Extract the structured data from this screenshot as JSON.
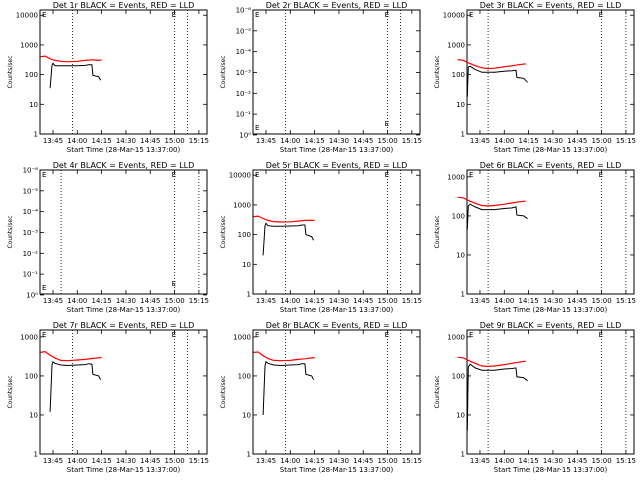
{
  "chart_data": [
    {
      "type": "line",
      "title": "Det 1r BLACK = Events, RED = LLD",
      "xlabel": "Start Time (28-Mar-15 13:37:00)",
      "ylabel": "Counts/sec",
      "y_scale": "log",
      "ylim": [
        1,
        15000
      ],
      "y_tick_labels": [
        "1",
        "10",
        "100",
        "1000",
        "10000"
      ],
      "xlim": [
        "13:37",
        "15:20"
      ],
      "x_tick_labels": [
        "13:45",
        "14:00",
        "14:15",
        "14:30",
        "14:45",
        "15:00",
        "15:15"
      ],
      "vlines": [
        "13:57",
        "15:00",
        "15:08"
      ],
      "annotation": "E",
      "series": [
        {
          "color": "#000000",
          "values": [
            [
              13.72,
              35
            ],
            [
              13.74,
              210
            ],
            [
              13.75,
              240
            ],
            [
              13.77,
              200
            ],
            [
              13.83,
              200
            ],
            [
              13.9,
              200
            ],
            [
              14.0,
              200
            ],
            [
              14.08,
              205
            ],
            [
              14.12,
              215
            ],
            [
              14.15,
              215
            ],
            [
              14.16,
              95
            ],
            [
              14.22,
              85
            ],
            [
              14.24,
              65
            ]
          ]
        },
        {
          "color": "#ff0000",
          "values": [
            [
              13.62,
              400
            ],
            [
              13.67,
              420
            ],
            [
              13.72,
              340
            ],
            [
              13.77,
              300
            ],
            [
              13.83,
              280
            ],
            [
              13.9,
              270
            ],
            [
              14.0,
              280
            ],
            [
              14.08,
              300
            ],
            [
              14.15,
              315
            ],
            [
              14.22,
              300
            ],
            [
              14.25,
              310
            ]
          ]
        }
      ]
    },
    {
      "type": "line",
      "title": "Det 2r BLACK = Events, RED = LLD",
      "xlabel": "Start Time (28-Mar-15 13:37:00)",
      "ylabel": "Counts/sec",
      "y_scale": "log",
      "ylim": [
        0.9,
        1e-06
      ],
      "y_tick_labels": [
        "10⁰",
        "10⁻¹",
        "10⁻²",
        "10⁻³",
        "10⁻⁴",
        "10⁻⁵",
        "10⁻⁶"
      ],
      "xlim": [
        "13:37",
        "15:20"
      ],
      "x_tick_labels": [
        "13:45",
        "14:00",
        "14:15",
        "14:30",
        "14:45",
        "15:00",
        "15:15"
      ],
      "vlines": [
        "13:57",
        "15:00",
        "15:08"
      ],
      "annotation": "E",
      "series": []
    },
    {
      "type": "line",
      "title": "Det 3r BLACK = Events, RED = LLD",
      "xlabel": "Start Time (28-Mar-15 13:37:00)",
      "ylabel": "Counts/sec",
      "y_scale": "log",
      "ylim": [
        1,
        15000
      ],
      "y_tick_labels": [
        "1",
        "10",
        "100",
        "1000",
        "10000"
      ],
      "xlim": [
        "13:37",
        "15:20"
      ],
      "x_tick_labels": [
        "13:45",
        "14:00",
        "14:15",
        "14:30",
        "14:45",
        "15:00",
        "15:15"
      ],
      "vlines": [
        "13:50",
        "15:00",
        "15:15"
      ],
      "annotation": "E",
      "series": [
        {
          "color": "#000000",
          "values": [
            [
              13.62,
              18
            ],
            [
              13.63,
              180
            ],
            [
              13.65,
              190
            ],
            [
              13.7,
              150
            ],
            [
              13.77,
              120
            ],
            [
              13.83,
              120
            ],
            [
              13.9,
              120
            ],
            [
              14.0,
              130
            ],
            [
              14.08,
              135
            ],
            [
              14.12,
              140
            ],
            [
              14.13,
              80
            ],
            [
              14.2,
              75
            ],
            [
              14.24,
              55
            ]
          ]
        },
        {
          "color": "#ff0000",
          "values": [
            [
              13.52,
              320
            ],
            [
              13.58,
              300
            ],
            [
              13.63,
              250
            ],
            [
              13.7,
              200
            ],
            [
              13.77,
              170
            ],
            [
              13.83,
              160
            ],
            [
              13.9,
              165
            ],
            [
              14.0,
              185
            ],
            [
              14.08,
              200
            ],
            [
              14.15,
              215
            ],
            [
              14.22,
              230
            ]
          ]
        }
      ]
    },
    {
      "type": "line",
      "title": "Det 4r BLACK = Events, RED = LLD",
      "xlabel": "Start Time (28-Mar-15 13:37:00)",
      "ylabel": "Counts/sec",
      "y_scale": "log",
      "ylim": [
        0.9,
        1e-06
      ],
      "y_tick_labels": [
        "10⁰",
        "10⁻¹",
        "10⁻²",
        "10⁻³",
        "10⁻⁴",
        "10⁻⁵",
        "10⁻⁶"
      ],
      "xlim": [
        "13:37",
        "15:20"
      ],
      "x_tick_labels": [
        "13:45",
        "14:00",
        "14:15",
        "14:30",
        "14:45",
        "15:00",
        "15:15"
      ],
      "vlines": [
        "13:50",
        "15:00",
        "15:15"
      ],
      "annotation": "E",
      "series": []
    },
    {
      "type": "line",
      "title": "Det 5r BLACK = Events, RED = LLD",
      "xlabel": "Start Time (28-Mar-15 13:37:00)",
      "ylabel": "Counts/sec",
      "y_scale": "log",
      "ylim": [
        1,
        15000
      ],
      "y_tick_labels": [
        "1",
        "10",
        "100",
        "1000",
        "10000"
      ],
      "xlim": [
        "13:37",
        "15:20"
      ],
      "x_tick_labels": [
        "13:45",
        "14:00",
        "14:15",
        "14:30",
        "14:45",
        "15:00",
        "15:15"
      ],
      "vlines": [
        "13:57",
        "15:00",
        "15:08"
      ],
      "annotation": "E",
      "series": [
        {
          "color": "#000000",
          "values": [
            [
              13.72,
              20
            ],
            [
              13.74,
              200
            ],
            [
              13.75,
              240
            ],
            [
              13.77,
              200
            ],
            [
              13.83,
              190
            ],
            [
              13.9,
              190
            ],
            [
              14.0,
              195
            ],
            [
              14.08,
              200
            ],
            [
              14.12,
              210
            ],
            [
              14.15,
              210
            ],
            [
              14.16,
              100
            ],
            [
              14.22,
              85
            ],
            [
              14.24,
              65
            ]
          ]
        },
        {
          "color": "#ff0000",
          "values": [
            [
              13.62,
              400
            ],
            [
              13.67,
              420
            ],
            [
              13.72,
              350
            ],
            [
              13.77,
              300
            ],
            [
              13.83,
              275
            ],
            [
              13.9,
              265
            ],
            [
              14.0,
              270
            ],
            [
              14.08,
              285
            ],
            [
              14.15,
              300
            ],
            [
              14.22,
              300
            ],
            [
              14.25,
              300
            ]
          ]
        }
      ]
    },
    {
      "type": "line",
      "title": "Det 6r BLACK = Events, RED = LLD",
      "xlabel": "Start Time (28-Mar-15 13:37:00)",
      "ylabel": "Counts/sec",
      "y_scale": "log",
      "ylim": [
        1,
        1500
      ],
      "y_tick_labels": [
        "1",
        "10",
        "100",
        "1000"
      ],
      "xlim": [
        "13:37",
        "15:20"
      ],
      "x_tick_labels": [
        "13:45",
        "14:00",
        "14:15",
        "14:30",
        "14:45",
        "15:00",
        "15:15"
      ],
      "vlines": [
        "13:50",
        "15:00",
        "15:15"
      ],
      "annotation": "E",
      "series": [
        {
          "color": "#000000",
          "values": [
            [
              13.62,
              45
            ],
            [
              13.63,
              180
            ],
            [
              13.65,
              200
            ],
            [
              13.7,
              170
            ],
            [
              13.77,
              145
            ],
            [
              13.83,
              145
            ],
            [
              13.9,
              145
            ],
            [
              14.0,
              155
            ],
            [
              14.08,
              160
            ],
            [
              14.12,
              170
            ],
            [
              14.13,
              105
            ],
            [
              14.2,
              100
            ],
            [
              14.24,
              85
            ]
          ]
        },
        {
          "color": "#ff0000",
          "values": [
            [
              13.52,
              300
            ],
            [
              13.58,
              290
            ],
            [
              13.63,
              250
            ],
            [
              13.7,
              210
            ],
            [
              13.77,
              185
            ],
            [
              13.83,
              180
            ],
            [
              13.9,
              185
            ],
            [
              14.0,
              200
            ],
            [
              14.08,
              215
            ],
            [
              14.15,
              230
            ],
            [
              14.22,
              240
            ]
          ]
        }
      ]
    },
    {
      "type": "line",
      "title": "Det 7r BLACK = Events, RED = LLD",
      "xlabel": "Start Time (28-Mar-15 13:37:00)",
      "ylabel": "Counts/sec",
      "y_scale": "log",
      "ylim": [
        1,
        1500
      ],
      "y_tick_labels": [
        "1",
        "10",
        "100",
        "1000"
      ],
      "xlim": [
        "13:37",
        "15:20"
      ],
      "x_tick_labels": [
        "13:45",
        "14:00",
        "14:15",
        "14:30",
        "14:45",
        "15:00",
        "15:15"
      ],
      "vlines": [
        "13:57",
        "15:00",
        "15:08"
      ],
      "annotation": "E",
      "series": [
        {
          "color": "#000000",
          "values": [
            [
              13.72,
              12
            ],
            [
              13.74,
              190
            ],
            [
              13.75,
              230
            ],
            [
              13.77,
              210
            ],
            [
              13.83,
              190
            ],
            [
              13.9,
              185
            ],
            [
              14.0,
              190
            ],
            [
              14.08,
              195
            ],
            [
              14.12,
              205
            ],
            [
              14.15,
              200
            ],
            [
              14.16,
              110
            ],
            [
              14.22,
              100
            ],
            [
              14.24,
              80
            ]
          ]
        },
        {
          "color": "#ff0000",
          "values": [
            [
              13.62,
              400
            ],
            [
              13.67,
              420
            ],
            [
              13.72,
              340
            ],
            [
              13.77,
              290
            ],
            [
              13.83,
              250
            ],
            [
              13.9,
              245
            ],
            [
              14.0,
              255
            ],
            [
              14.08,
              265
            ],
            [
              14.15,
              280
            ],
            [
              14.22,
              290
            ],
            [
              14.25,
              300
            ]
          ]
        }
      ]
    },
    {
      "type": "line",
      "title": "Det 8r BLACK = Events, RED = LLD",
      "xlabel": "Start Time (28-Mar-15 13:37:00)",
      "ylabel": "Counts/sec",
      "y_scale": "log",
      "ylim": [
        1,
        1500
      ],
      "y_tick_labels": [
        "1",
        "10",
        "100",
        "1000"
      ],
      "xlim": [
        "13:37",
        "15:20"
      ],
      "x_tick_labels": [
        "13:45",
        "14:00",
        "14:15",
        "14:30",
        "14:45",
        "15:00",
        "15:15"
      ],
      "vlines": [
        "13:57",
        "15:00",
        "15:08"
      ],
      "annotation": "E",
      "series": [
        {
          "color": "#000000",
          "values": [
            [
              13.72,
              10
            ],
            [
              13.74,
              180
            ],
            [
              13.75,
              230
            ],
            [
              13.77,
              210
            ],
            [
              13.83,
              190
            ],
            [
              13.9,
              185
            ],
            [
              14.0,
              190
            ],
            [
              14.08,
              195
            ],
            [
              14.12,
              205
            ],
            [
              14.15,
              205
            ],
            [
              14.16,
              110
            ],
            [
              14.22,
              100
            ],
            [
              14.24,
              80
            ]
          ]
        },
        {
          "color": "#ff0000",
          "values": [
            [
              13.62,
              400
            ],
            [
              13.67,
              410
            ],
            [
              13.72,
              330
            ],
            [
              13.77,
              280
            ],
            [
              13.83,
              250
            ],
            [
              13.9,
              245
            ],
            [
              14.0,
              250
            ],
            [
              14.08,
              265
            ],
            [
              14.15,
              275
            ],
            [
              14.22,
              290
            ],
            [
              14.25,
              295
            ]
          ]
        }
      ]
    },
    {
      "type": "line",
      "title": "Det 9r BLACK = Events, RED = LLD",
      "xlabel": "Start Time (28-Mar-15 13:37:00)",
      "ylabel": "Counts/sec",
      "y_scale": "log",
      "ylim": [
        1,
        1500
      ],
      "y_tick_labels": [
        "1",
        "10",
        "100",
        "1000"
      ],
      "xlim": [
        "13:37",
        "15:20"
      ],
      "x_tick_labels": [
        "13:45",
        "14:00",
        "14:15",
        "14:30",
        "14:45",
        "15:00",
        "15:15"
      ],
      "vlines": [
        "13:50",
        "15:00",
        "15:15"
      ],
      "annotation": "E",
      "series": [
        {
          "color": "#000000",
          "values": [
            [
              13.62,
              4
            ],
            [
              13.63,
              170
            ],
            [
              13.65,
              200
            ],
            [
              13.7,
              160
            ],
            [
              13.77,
              140
            ],
            [
              13.83,
              140
            ],
            [
              13.9,
              140
            ],
            [
              14.0,
              150
            ],
            [
              14.08,
              155
            ],
            [
              14.12,
              160
            ],
            [
              14.13,
              95
            ],
            [
              14.2,
              90
            ],
            [
              14.24,
              75
            ]
          ]
        },
        {
          "color": "#ff0000",
          "values": [
            [
              13.52,
              300
            ],
            [
              13.58,
              290
            ],
            [
              13.63,
              250
            ],
            [
              13.7,
              210
            ],
            [
              13.77,
              180
            ],
            [
              13.83,
              175
            ],
            [
              13.9,
              180
            ],
            [
              14.0,
              195
            ],
            [
              14.08,
              210
            ],
            [
              14.15,
              225
            ],
            [
              14.22,
              240
            ]
          ]
        }
      ]
    }
  ]
}
